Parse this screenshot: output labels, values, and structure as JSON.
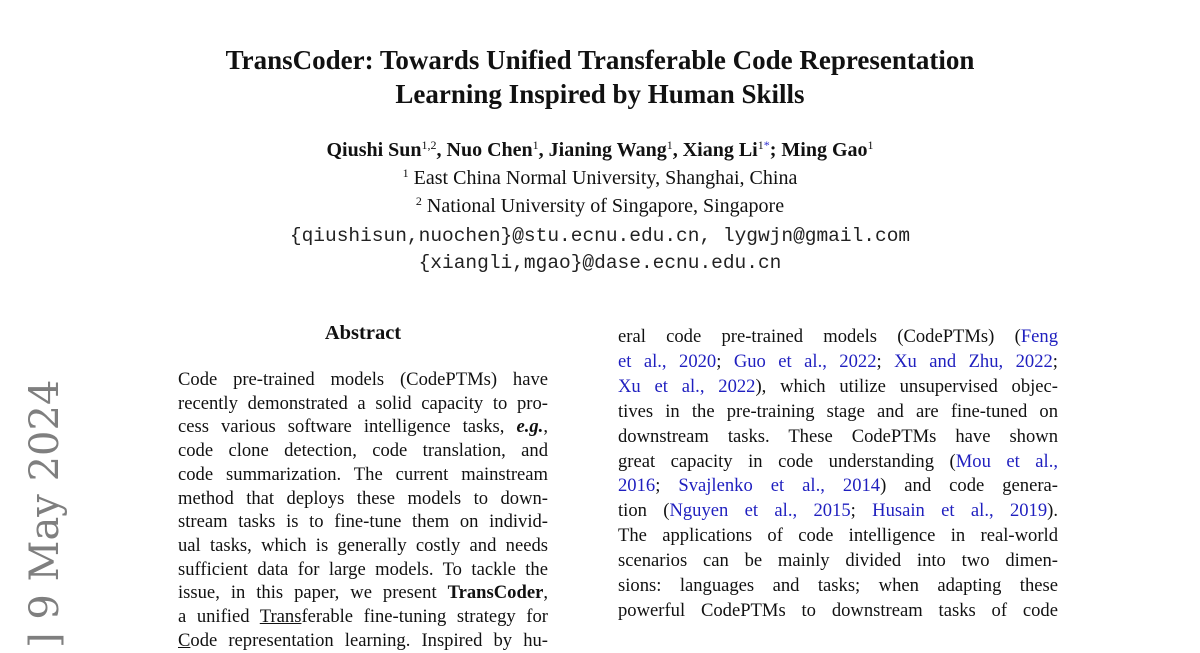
{
  "title": {
    "line1": "TransCoder: Towards Unified Transferable Code Representation",
    "line2": "Learning Inspired by Human Skills"
  },
  "authors": [
    {
      "name": "Qiushi Sun",
      "sup": "1,2",
      "sep": ", "
    },
    {
      "name": "Nuo Chen",
      "sup": "1",
      "sep": ", "
    },
    {
      "name": "Jianing Wang",
      "sup": "1",
      "sep": ", "
    },
    {
      "name": "Xiang Li",
      "sup": "1",
      "mark": "*",
      "sep": "; "
    },
    {
      "name": "Ming Gao",
      "sup": "1",
      "sep": ""
    }
  ],
  "affiliations": [
    {
      "sup": "1",
      "text": "East China Normal University, Shanghai, China"
    },
    {
      "sup": "2",
      "text": "National University of Singapore, Singapore"
    }
  ],
  "emails": [
    "{qiushisun,nuochen}@stu.ecnu.edu.cn, lygwjn@gmail.com",
    "{xiangli,mgao}@dase.ecnu.edu.cn"
  ],
  "stamp": "] 9 May 2024",
  "abstract_heading": "Abstract",
  "left_lines": [
    [
      {
        "t": "Code pre-trained models (CodePTMs) have"
      }
    ],
    [
      {
        "t": "recently demonstrated a solid capacity to pro-"
      }
    ],
    [
      {
        "t": "cess various software intelligence tasks, "
      },
      {
        "t": "e.g.",
        "s": "bi"
      },
      {
        "t": ","
      }
    ],
    [
      {
        "t": "code clone detection, code translation, and"
      }
    ],
    [
      {
        "t": "code summarization. The current mainstream"
      }
    ],
    [
      {
        "t": "method that deploys these models to down-"
      }
    ],
    [
      {
        "t": "stream tasks is to fine-tune them on individ-"
      }
    ],
    [
      {
        "t": "ual tasks, which is generally costly and needs"
      }
    ],
    [
      {
        "t": "sufficient data for large models. To tackle the"
      }
    ],
    [
      {
        "t": "issue, in this paper, we present "
      },
      {
        "t": "TransCoder",
        "s": "b"
      },
      {
        "t": ","
      }
    ],
    [
      {
        "t": "a unified "
      },
      {
        "t": "Trans",
        "s": "u"
      },
      {
        "t": "ferable fine-tuning strategy for"
      }
    ],
    [
      {
        "t": "C",
        "s": "u"
      },
      {
        "t": "ode representation learning. Inspired by hu-"
      }
    ]
  ],
  "right_lines": [
    [
      {
        "t": "eral code pre-trained models (CodePTMs) ("
      },
      {
        "t": "Feng",
        "s": "l"
      }
    ],
    [
      {
        "t": "et al., 2020",
        "s": "l"
      },
      {
        "t": "; "
      },
      {
        "t": "Guo et al., 2022",
        "s": "l"
      },
      {
        "t": "; "
      },
      {
        "t": "Xu and Zhu, 2022",
        "s": "l"
      },
      {
        "t": ";"
      }
    ],
    [
      {
        "t": "Xu et al., 2022",
        "s": "l"
      },
      {
        "t": "), which utilize unsupervised objec-"
      }
    ],
    [
      {
        "t": "tives in the pre-training stage and are fine-tuned on"
      }
    ],
    [
      {
        "t": "downstream tasks. These CodePTMs have shown"
      }
    ],
    [
      {
        "t": "great capacity in code understanding ("
      },
      {
        "t": "Mou et al.,",
        "s": "l"
      }
    ],
    [
      {
        "t": "2016",
        "s": "l"
      },
      {
        "t": "; "
      },
      {
        "t": "Svajlenko et al., 2014",
        "s": "l"
      },
      {
        "t": ") and code genera-"
      }
    ],
    [
      {
        "t": "tion ("
      },
      {
        "t": "Nguyen et al., 2015",
        "s": "l"
      },
      {
        "t": "; "
      },
      {
        "t": "Husain et al., 2019",
        "s": "l"
      },
      {
        "t": ")."
      }
    ],
    [
      {
        "t": "The applications of code intelligence in real-world"
      }
    ],
    [
      {
        "t": "scenarios can be mainly divided into two dimen-"
      }
    ],
    [
      {
        "t": "sions:  languages and tasks; when adapting these"
      }
    ],
    [
      {
        "t": "powerful CodePTMs to downstream tasks of code"
      }
    ]
  ]
}
